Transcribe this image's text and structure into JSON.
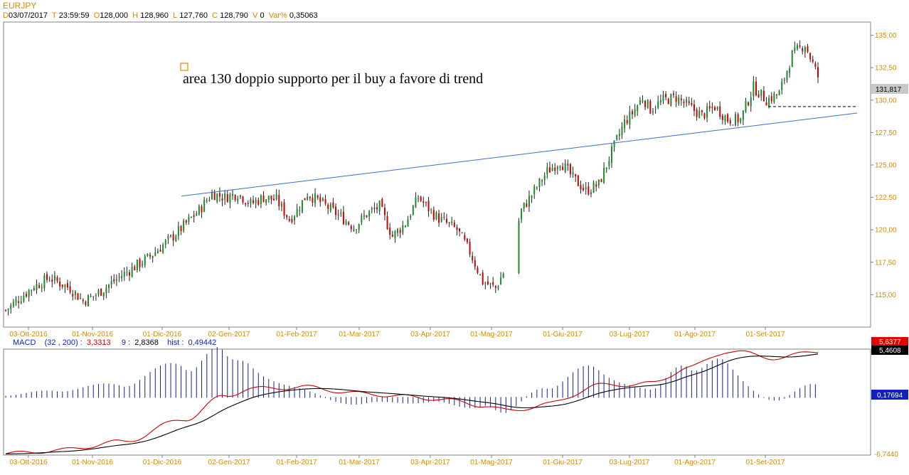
{
  "header": {
    "symbol": "EURJPY",
    "date_key": "D",
    "date": "03/07/2017",
    "time_key": "T",
    "time": "23:59:59",
    "open_key": "O",
    "open": "128,000",
    "high_key": "H",
    "high": "128,960",
    "low_key": "L",
    "low": "127,760",
    "close_key": "C",
    "close": "128,790",
    "vol_key": "V",
    "volume": "0",
    "var_key": "Var%",
    "var": "0,35063"
  },
  "annotation": "area 130 doppio supporto per il buy a favore di trend",
  "price_badge": "131,817",
  "macd_header": {
    "label": "MACD",
    "params": "(32 , 200) :",
    "macd_value": "3,3313",
    "signal_period": "9 :",
    "signal_value": "2,8368",
    "hist_label": "hist :",
    "hist_value": "0,49442"
  },
  "macd_badges": {
    "red": "5,6377",
    "black": "5,4608",
    "blue": "0,17694",
    "min": "-6,7440"
  },
  "colors": {
    "up": "#1a8a2a",
    "down": "#cc0000",
    "trendline": "#3a6fc4",
    "macd_line": "#000000",
    "signal_line": "#cc0000",
    "histogram": "#1020a0",
    "axis_text": "#d68a00"
  },
  "chart_data": {
    "type": "candlestick",
    "symbol": "EURJPY",
    "x_ticks": [
      "03-Ott-2016",
      "01-Nov-2016",
      "01-Dic-2016",
      "02-Gen-2017",
      "01-Feb-2017",
      "01-Mar-2017",
      "03-Apr-2017",
      "01-Mag-2017",
      "01-Giu-2017",
      "03-Lug-2017",
      "01-Ago-2017",
      "01-Set-2017"
    ],
    "y_ticks": [
      "135,00",
      "132,50",
      "130,00",
      "127,50",
      "125,00",
      "122,50",
      "120,00",
      "117,50",
      "115,00"
    ],
    "ylim": [
      112.5,
      135.8
    ],
    "close_path_x": [
      0,
      10,
      17,
      25,
      30,
      35,
      45,
      55,
      65,
      75,
      80,
      85,
      90,
      95,
      100,
      105,
      110,
      113,
      117,
      123,
      130,
      135,
      140,
      145,
      150,
      155,
      160,
      167,
      175,
      180,
      185,
      190,
      195,
      200,
      205,
      210,
      215,
      220,
      225,
      230,
      235,
      240,
      243,
      247,
      250,
      255,
      260,
      265,
      270,
      275,
      280,
      285,
      290,
      295,
      300,
      305,
      310,
      315
    ],
    "close_path_y": [
      113.8,
      115.5,
      116.3,
      115.5,
      114.5,
      115.0,
      116.5,
      117.8,
      119.5,
      121.5,
      122.8,
      122.5,
      122.8,
      122.0,
      122.5,
      122.3,
      120.8,
      121.5,
      122.8,
      122.0,
      121.0,
      120.2,
      121.2,
      121.8,
      119.5,
      120.5,
      122.5,
      121.0,
      120.0,
      118.3,
      116.0,
      115.5,
      117.5,
      121.5,
      123.0,
      124.5,
      125.3,
      124.0,
      123.0,
      123.5,
      126.0,
      128.3,
      129.0,
      130.2,
      129.3,
      130.0,
      130.2,
      129.5,
      128.8,
      129.5,
      128.5,
      128.5,
      131.0,
      130.0,
      130.5,
      133.5,
      134.3,
      131.8
    ],
    "trendline": {
      "start": {
        "x": 69,
        "y": 122.6
      },
      "end": {
        "x": 315,
        "y": 129.0
      }
    },
    "support_level": 129.5,
    "macd": {
      "params": [
        32,
        200,
        9
      ],
      "macd": 3.3313,
      "signal": 2.8368,
      "hist": 0.49442,
      "min": -6.744,
      "max": 5.6377
    }
  }
}
